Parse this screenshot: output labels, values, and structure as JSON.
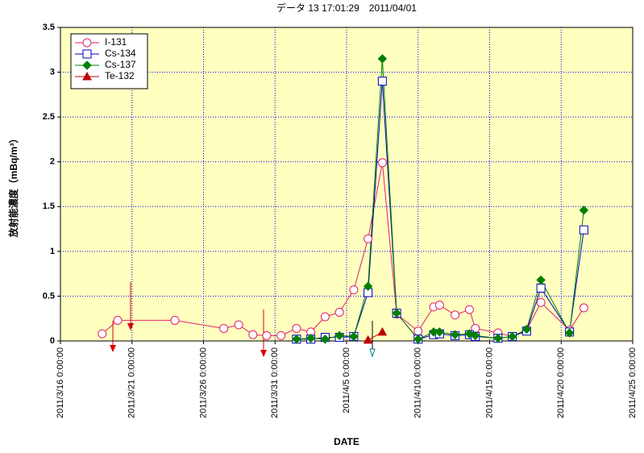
{
  "chart_data": {
    "type": "line",
    "title": "データ 13 17:01:29　2011/04/01",
    "xlabel": "DATE",
    "ylabel": "放射能濃度（mBq/m³）",
    "x": [
      "2011-03-18T22:00",
      "2011-03-20T00:00",
      "2011-03-24T00:00",
      "2011-03-27T10:00",
      "2011-03-28T11:00",
      "2011-03-29T11:00",
      "2011-03-30T10:00",
      "2011-03-31T10:00",
      "2011-04-01T12:00",
      "2011-04-02T12:00",
      "2011-04-03T12:00",
      "2011-04-04T12:00",
      "2011-04-05T12:00",
      "2011-04-06T12:00",
      "2011-04-07T12:00",
      "2011-04-08T12:00",
      "2011-04-10T00:00",
      "2011-04-11T02:00",
      "2011-04-11T12:00",
      "2011-04-12T14:00",
      "2011-04-13T14:00",
      "2011-04-14T00:00",
      "2011-04-15T14:00",
      "2011-04-16T14:00",
      "2011-04-17T14:00",
      "2011-04-18T14:00",
      "2011-04-20T14:00",
      "2011-04-21T14:00"
    ],
    "series": [
      {
        "name": "I-131",
        "color": "#e0206e",
        "marker": "circle",
        "values": [
          0.08,
          0.23,
          0.23,
          0.14,
          0.18,
          0.07,
          0.06,
          0.06,
          0.14,
          0.1,
          0.27,
          0.32,
          0.57,
          1.14,
          1.99,
          0.3,
          0.11,
          0.38,
          0.4,
          0.29,
          0.35,
          0.14,
          0.09,
          0.05,
          0.12,
          0.43,
          0.12,
          0.37
        ]
      },
      {
        "name": "Cs-134",
        "color": "#0000c0",
        "marker": "square",
        "values": [
          null,
          null,
          null,
          null,
          null,
          null,
          null,
          null,
          0.02,
          0.02,
          0.04,
          0.04,
          0.05,
          0.54,
          2.9,
          0.31,
          0.02,
          0.07,
          0.08,
          0.06,
          0.07,
          0.05,
          0.03,
          0.05,
          0.11,
          0.59,
          0.1,
          1.24
        ]
      },
      {
        "name": "Cs-137",
        "color": "#008000",
        "marker": "diamond",
        "values": [
          null,
          null,
          null,
          null,
          null,
          null,
          null,
          null,
          0.02,
          0.03,
          0.02,
          0.06,
          0.05,
          0.61,
          3.15,
          0.31,
          0.02,
          0.1,
          0.1,
          0.07,
          0.08,
          0.06,
          0.03,
          0.05,
          0.13,
          0.68,
          0.09,
          1.46
        ]
      },
      {
        "name": "Te-132",
        "color": "#c00000",
        "marker": "triangle",
        "values": [
          null,
          null,
          null,
          null,
          null,
          null,
          null,
          null,
          null,
          null,
          null,
          null,
          null,
          0.01,
          0.1,
          null,
          null,
          null,
          null,
          null,
          null,
          null,
          null,
          null,
          null,
          null,
          null,
          null
        ]
      }
    ],
    "xlim": [
      "2011-03-16T00:00",
      "2011-04-25T00:00"
    ],
    "xticks": [
      {
        "value": "2011-03-16T00:00",
        "label": "2011/3/16 0:00:00"
      },
      {
        "value": "2011-03-21T00:00",
        "label": "2011/3/21 0:00:00"
      },
      {
        "value": "2011-03-26T00:00",
        "label": "2011/3/26 0:00:00"
      },
      {
        "value": "2011-03-31T00:00",
        "label": "2011/3/31 0:00:00"
      },
      {
        "value": "2011-04-05T00:00",
        "label": "2011/4/5 0:00:00"
      },
      {
        "value": "2011-04-10T00:00",
        "label": "2011/4/10 0:00:00"
      },
      {
        "value": "2011-04-15T00:00",
        "label": "2011/4/15 0:00:00"
      },
      {
        "value": "2011-04-20T00:00",
        "label": "2011/4/20 0:00:00"
      },
      {
        "value": "2011-04-25T00:00",
        "label": "2011/4/25 0:00:00"
      }
    ],
    "ylim": [
      0,
      3.5
    ],
    "yticks": [
      0,
      0.5,
      1,
      1.5,
      2,
      2.5,
      3,
      3.5
    ],
    "grid": true,
    "legend": "upper left"
  }
}
